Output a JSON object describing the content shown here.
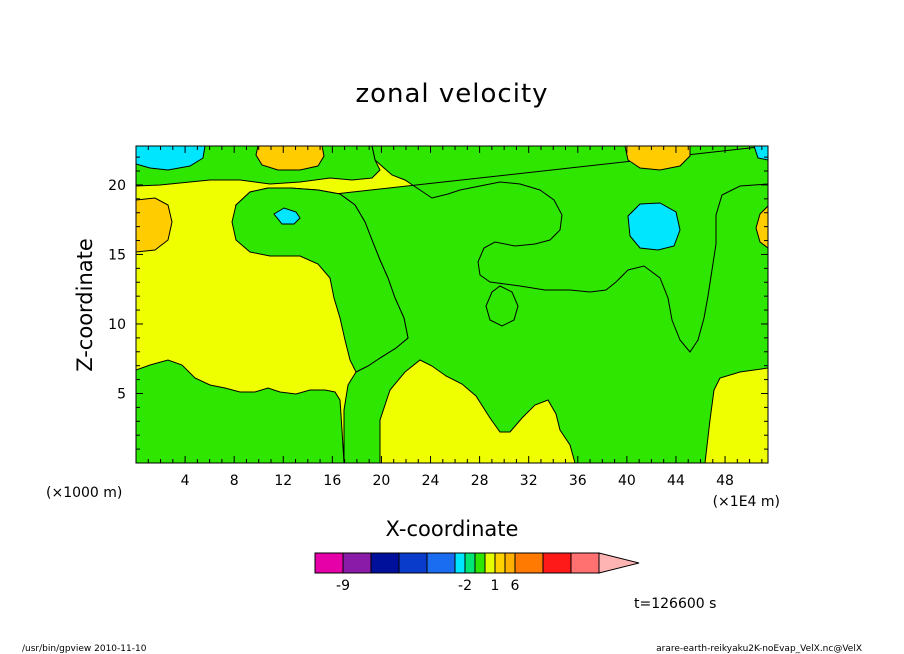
{
  "chart_data": {
    "type": "heatmap",
    "title": "zonal velocity",
    "xlabel": "X-coordinate",
    "ylabel": "Z-coordinate",
    "x_unit_left": "(×1000 m)",
    "x_unit_right": "(×1E4 m)",
    "xlim": [
      0,
      51.5
    ],
    "ylim": [
      0,
      22.8
    ],
    "x_ticks": [
      4,
      8,
      12,
      16,
      20,
      24,
      28,
      32,
      36,
      40,
      44,
      48
    ],
    "y_ticks": [
      5,
      10,
      15,
      20
    ],
    "time_label": "t=126600 s",
    "colorbar": {
      "colors": [
        "#e600a8",
        "#8a1aa8",
        "#00109a",
        "#0a3ccc",
        "#1a6cf0",
        "#00e6ff",
        "#00e676",
        "#2ee600",
        "#e6ff00",
        "#ffd200",
        "#ffb000",
        "#ff7a00",
        "#ff1a1a",
        "#ff7070",
        "#ffb4b4"
      ],
      "widths": [
        32,
        32,
        32,
        32,
        32,
        12,
        12,
        12,
        12,
        12,
        12,
        32,
        32,
        32,
        32
      ],
      "labels": [
        {
          "text": "-9",
          "after_index": 0
        },
        {
          "text": "-2",
          "after_index": 5
        },
        {
          "text": "1",
          "after_index": 8
        },
        {
          "text": "6",
          "after_index": 10
        }
      ]
    },
    "regions": [
      {
        "color": "#f0ff00",
        "role": "background"
      },
      {
        "color": "#2ee600",
        "role": "green contours"
      },
      {
        "color": "#ffcc00",
        "role": "orange contours"
      },
      {
        "color": "#00e6ff",
        "role": "cyan contours"
      }
    ]
  },
  "footer": {
    "left": "/usr/bin/gpview  2010-11-10",
    "right": "arare-earth-reikyaku2K-noEvap_VelX.nc@VelX"
  }
}
